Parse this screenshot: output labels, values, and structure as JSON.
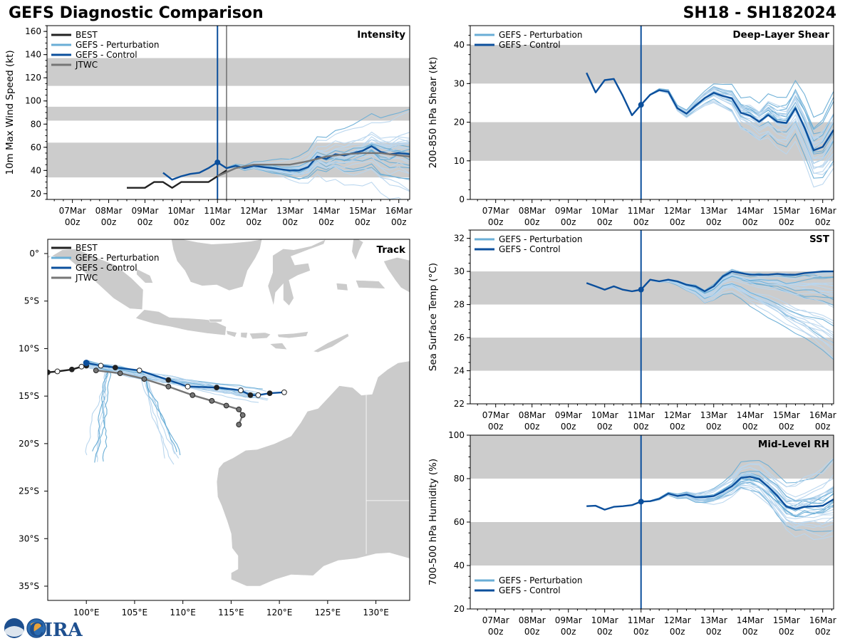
{
  "header": {
    "title_left": "GEFS Diagnostic Comparison",
    "title_right": "SH18 - SH182024"
  },
  "time_axis": {
    "labels": [
      "07Mar\n00z",
      "08Mar\n00z",
      "09Mar\n00z",
      "10Mar\n00z",
      "11Mar\n00z",
      "12Mar\n00z",
      "13Mar\n00z",
      "14Mar\n00z",
      "15Mar\n00z",
      "16Mar\n00z"
    ],
    "label_days": [
      7,
      8,
      9,
      10,
      11,
      12,
      13,
      14,
      15,
      16
    ],
    "range_days": [
      6.3,
      16.3
    ],
    "init_day": 11.0
  },
  "colors": {
    "best": "#222222",
    "perturbation": "#6aaed6",
    "perturbation_light": "#b9d6ee",
    "control": "#0b4f9c",
    "jtwc": "#767676",
    "band": "#cccccc",
    "land": "#cbcbcb"
  },
  "legend_labels": {
    "best": "BEST",
    "pert": "GEFS - Perturbation",
    "control": "GEFS - Control",
    "jtwc": "JTWC"
  },
  "chart_data": [
    {
      "id": "intensity",
      "type": "line",
      "title": "Intensity",
      "ylabel": "10m Max Wind Speed (kt)",
      "ylim": [
        15,
        165
      ],
      "yticks": [
        20,
        40,
        60,
        80,
        100,
        120,
        140,
        160
      ],
      "bands": [
        [
          34,
          64
        ],
        [
          83,
          95
        ],
        [
          113,
          137
        ]
      ],
      "legend": [
        "best",
        "pert",
        "control",
        "jtwc"
      ],
      "jtwc_marker_day": 11.25,
      "series": [
        {
          "name": "BEST",
          "x": [
            8.5,
            9.0,
            9.25,
            9.5,
            9.75,
            10.0,
            10.25,
            10.5,
            10.75,
            11.0,
            11.25
          ],
          "y": [
            25,
            25,
            30,
            30,
            25,
            30,
            30,
            30,
            30,
            35,
            40
          ]
        },
        {
          "name": "GEFS - Control",
          "x": [
            9.5,
            9.75,
            10.0,
            10.25,
            10.5,
            10.75,
            11.0,
            11.25,
            11.5,
            11.75,
            12.0,
            12.25,
            12.5,
            12.75,
            13.0,
            13.25,
            13.5,
            13.75,
            14.0,
            14.25,
            14.5,
            14.75,
            15.0,
            15.25,
            15.5,
            15.75,
            16.0,
            16.3
          ],
          "y": [
            38,
            32,
            35,
            37,
            38,
            42,
            47,
            42,
            44,
            42,
            44,
            43,
            42,
            41,
            40,
            40,
            43,
            52,
            50,
            54,
            53,
            55,
            57,
            61,
            56,
            54,
            55,
            54
          ]
        },
        {
          "name": "JTWC",
          "x": [
            11.0,
            11.5,
            12.0,
            12.5,
            13.0,
            13.5,
            14.0,
            14.5,
            15.0,
            15.5,
            16.0,
            16.3
          ],
          "y": [
            35,
            42,
            45,
            45,
            45,
            48,
            52,
            54,
            55,
            55,
            53,
            52
          ]
        }
      ]
    },
    {
      "id": "shear",
      "type": "line",
      "title": "Deep-Layer Shear",
      "ylabel": "200-850 hPa Shear (kt)",
      "ylim": [
        0,
        45
      ],
      "yticks": [
        0,
        10,
        20,
        30,
        40
      ],
      "bands": [
        [
          10,
          20
        ],
        [
          30,
          40
        ]
      ],
      "legend": [
        "pert",
        "control"
      ],
      "series": [
        {
          "name": "GEFS - Control",
          "x": [
            9.5,
            9.75,
            10.0,
            10.25,
            10.5,
            10.75,
            11.0,
            11.25,
            11.5,
            11.75,
            12.0,
            12.25,
            12.5,
            12.75,
            13.0,
            13.25,
            13.5,
            13.75,
            14.0,
            14.25,
            14.5,
            14.75,
            15.0,
            15.25,
            15.5,
            15.75,
            16.0,
            16.3
          ],
          "y": [
            32.8,
            27.7,
            30.9,
            31.2,
            26.8,
            21.8,
            24.5,
            27.1,
            28.3,
            27.9,
            23.6,
            22.2,
            24.3,
            26.2,
            27.6,
            26.8,
            26.2,
            22.4,
            21.7,
            20.1,
            21.9,
            20.1,
            19.8,
            23.6,
            18.6,
            12.7,
            13.6,
            18.0
          ]
        }
      ]
    },
    {
      "id": "sst",
      "type": "line",
      "title": "SST",
      "ylabel": "Sea Surface Temp (°C)",
      "ylim": [
        22,
        32.5
      ],
      "yticks": [
        22,
        24,
        26,
        28,
        30,
        32
      ],
      "bands": [
        [
          24,
          26
        ],
        [
          28,
          30
        ]
      ],
      "legend": [
        "pert",
        "control"
      ],
      "series": [
        {
          "name": "GEFS - Control",
          "x": [
            9.5,
            9.75,
            10.0,
            10.25,
            10.5,
            10.75,
            11.0,
            11.25,
            11.5,
            11.75,
            12.0,
            12.25,
            12.5,
            12.75,
            13.0,
            13.25,
            13.5,
            13.75,
            14.0,
            14.25,
            14.5,
            14.75,
            15.0,
            15.25,
            15.5,
            15.75,
            16.0,
            16.3
          ],
          "y": [
            29.3,
            29.1,
            28.9,
            29.1,
            28.9,
            28.8,
            28.9,
            29.5,
            29.4,
            29.5,
            29.4,
            29.2,
            29.1,
            28.8,
            29.1,
            29.7,
            30.0,
            29.9,
            29.8,
            29.8,
            29.8,
            29.85,
            29.8,
            29.8,
            29.9,
            29.95,
            30.0,
            30.0
          ]
        }
      ]
    },
    {
      "id": "rh",
      "type": "line",
      "title": "Mid-Level RH",
      "ylabel": "700-500 hPa Humidity (%)",
      "ylim": [
        20,
        100
      ],
      "yticks": [
        20,
        40,
        60,
        80,
        100
      ],
      "bands": [
        [
          40,
          60
        ],
        [
          80,
          100
        ]
      ],
      "legend": [
        "pert",
        "control"
      ],
      "series": [
        {
          "name": "GEFS - Control",
          "x": [
            9.5,
            9.75,
            10.0,
            10.25,
            10.5,
            10.75,
            11.0,
            11.25,
            11.5,
            11.75,
            12.0,
            12.25,
            12.5,
            12.75,
            13.0,
            13.25,
            13.5,
            13.75,
            14.0,
            14.25,
            14.5,
            14.75,
            15.0,
            15.25,
            15.5,
            15.75,
            16.0,
            16.3
          ],
          "y": [
            67.3,
            67.5,
            65.7,
            67.0,
            67.3,
            67.8,
            69.4,
            69.6,
            70.7,
            73.1,
            72.0,
            72.7,
            71.4,
            71.5,
            72.0,
            74.0,
            76.5,
            80.4,
            80.9,
            79.8,
            76.3,
            72.1,
            67.1,
            66.0,
            67.0,
            67.2,
            67.5,
            70.5
          ]
        }
      ]
    },
    {
      "id": "track",
      "type": "line",
      "title": "Track",
      "xlim": [
        96.0,
        133.5
      ],
      "ylim": [
        -36.5,
        1.5
      ],
      "xticks": [
        100,
        105,
        110,
        115,
        120,
        125,
        130
      ],
      "xtick_labels": [
        "100°E",
        "105°E",
        "110°E",
        "115°E",
        "120°E",
        "125°E",
        "130°E"
      ],
      "yticks": [
        0,
        -5,
        -10,
        -15,
        -20,
        -25,
        -30,
        -35
      ],
      "ytick_labels": [
        "0°",
        "5°S",
        "10°S",
        "15°S",
        "20°S",
        "25°S",
        "30°S",
        "35°S"
      ],
      "legend": [
        "best",
        "pert",
        "control",
        "jtwc"
      ],
      "series": [
        {
          "name": "BEST",
          "lon": [
            96.0,
            97.0,
            98.5,
            99.5,
            100.0
          ],
          "lat": [
            -12.5,
            -12.4,
            -12.2,
            -11.9,
            -11.8
          ]
        },
        {
          "name": "GEFS - Control",
          "lon": [
            100.0,
            101.5,
            103.0,
            105.5,
            108.5,
            110.5,
            113.5,
            116.0,
            117.0,
            117.8,
            119.0,
            120.5
          ],
          "lat": [
            -11.5,
            -11.8,
            -12.0,
            -12.3,
            -13.3,
            -14.0,
            -14.1,
            -14.4,
            -14.9,
            -14.9,
            -14.7,
            -14.6
          ]
        },
        {
          "name": "JTWC",
          "lon": [
            101.0,
            103.5,
            106.0,
            108.5,
            111.0,
            113.0,
            114.5,
            115.8,
            116.2,
            115.8
          ],
          "lat": [
            -12.3,
            -12.6,
            -13.2,
            -14.0,
            -14.9,
            -15.5,
            -16.0,
            -16.4,
            -17.0,
            -18.0
          ]
        }
      ]
    }
  ],
  "logo": {
    "text": "CIRA"
  }
}
